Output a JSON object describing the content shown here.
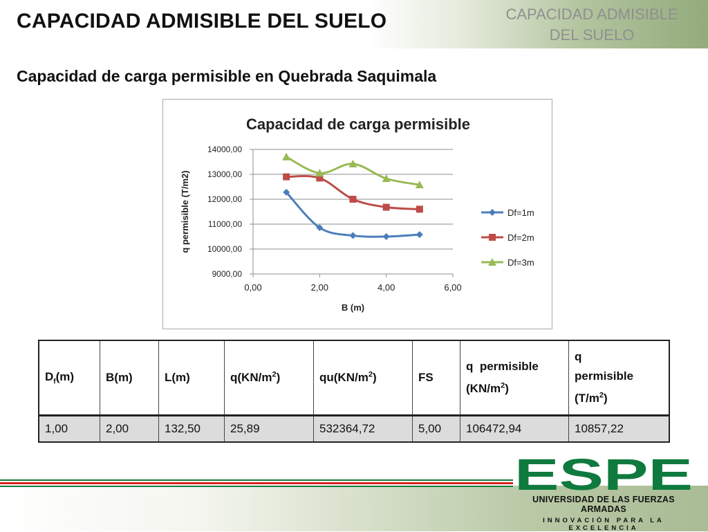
{
  "header": {
    "title": "CAPACIDAD ADMISIBLE DEL SUELO",
    "corner_label_line1": "CAPACIDAD ADMISIBLE",
    "corner_label_line2": "DEL SUELO"
  },
  "subtitle": "Capacidad de carga permisible en Quebrada Saquimala",
  "chart_data": {
    "type": "line",
    "title": "Capacidad de carga permisible",
    "xlabel": "B (m)",
    "ylabel": "q permisible (T/m2)",
    "xlim": [
      0,
      6
    ],
    "ylim": [
      9000,
      14000
    ],
    "xticks": [
      "0,00",
      "2,00",
      "4,00",
      "6,00"
    ],
    "yticks": [
      "9000,00",
      "10000,00",
      "11000,00",
      "12000,00",
      "13000,00",
      "14000,00"
    ],
    "x": [
      1,
      2,
      3,
      4,
      5
    ],
    "grid": "horizontal",
    "legend_position": "right",
    "series": [
      {
        "name": "Df=1m",
        "color": "#4a7ebb",
        "marker": "diamond",
        "values": [
          12280,
          10857,
          10540,
          10500,
          10580
        ]
      },
      {
        "name": "Df=2m",
        "color": "#be4b48",
        "marker": "square",
        "values": [
          12900,
          12850,
          12000,
          11680,
          11600
        ]
      },
      {
        "name": "Df=3m",
        "color": "#98b954",
        "marker": "triangle",
        "values": [
          13700,
          13050,
          13420,
          12830,
          12580
        ]
      }
    ]
  },
  "table": {
    "headers": [
      {
        "main": "D",
        "sub": "f",
        "tail": "(m)"
      },
      {
        "main": "B(m)"
      },
      {
        "main": "L(m)"
      },
      {
        "main": "q(KN/m",
        "sup": "2",
        "tail": ")"
      },
      {
        "main": "qu(KN/m",
        "sup": "2",
        "tail": ")"
      },
      {
        "main": "FS"
      },
      {
        "line1": "q  permisible",
        "main": "(KN/m",
        "sup": "2",
        "tail": ")"
      },
      {
        "line1": "q",
        "line2": "permisible",
        "main": "(T/m",
        "sup": "2",
        "tail": ")"
      }
    ],
    "row": [
      "1,00",
      "2,00",
      "132,50",
      "25,89",
      "532364,72",
      "5,00",
      "106472,94",
      "10857,22"
    ]
  },
  "logo": {
    "wordmark": "ESPE",
    "line1": "UNIVERSIDAD DE LAS FUERZAS ARMADAS",
    "line2": "INNOVACIÓN PARA LA EXCELENCIA",
    "color": "#0f7a3e"
  },
  "stripes": [
    "#0f7a3e",
    "#d7231f",
    "#0f7a3e"
  ]
}
